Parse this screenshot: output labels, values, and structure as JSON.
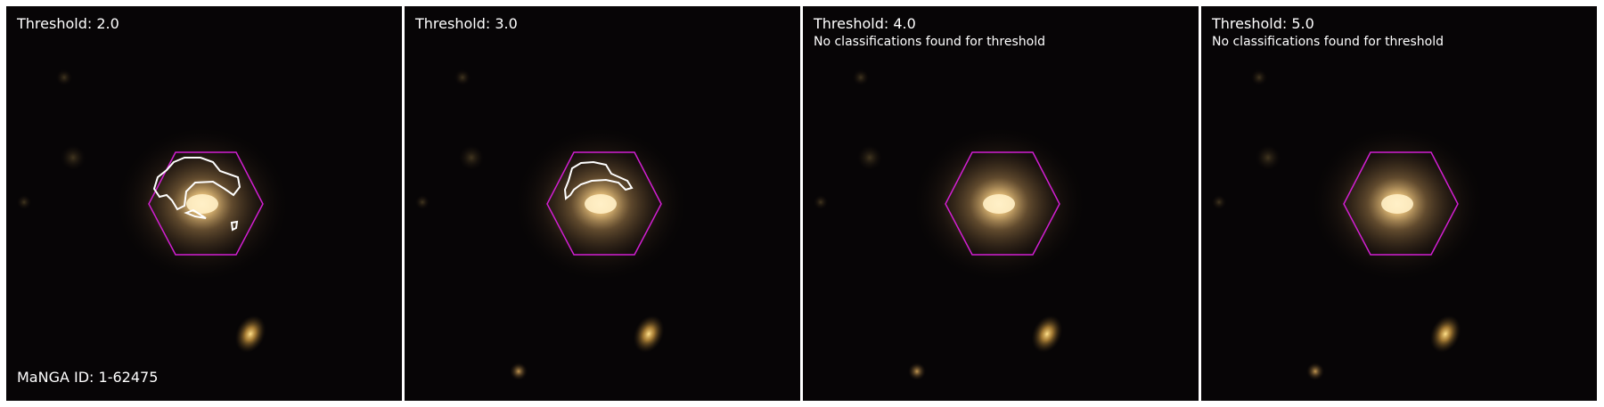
{
  "panels": [
    {
      "title": "Threshold: 2.0",
      "message": "",
      "contours": [
        "main",
        "small-triangle",
        "small-dot"
      ]
    },
    {
      "title": "Threshold: 3.0",
      "message": "",
      "contours": [
        "arc"
      ]
    },
    {
      "title": "Threshold: 4.0",
      "message": "No classifications found for threshold",
      "contours": []
    },
    {
      "title": "Threshold: 5.0",
      "message": "No classifications found for threshold",
      "contours": []
    }
  ],
  "manga_id_label": "MaNGA ID: 1-62475",
  "colors": {
    "hexagon": "#d21fd2",
    "contour": "#ffffff",
    "sky": "#070506",
    "galaxy_core": "#ffe9b8",
    "galaxy_halo": "#9a7a4a"
  }
}
